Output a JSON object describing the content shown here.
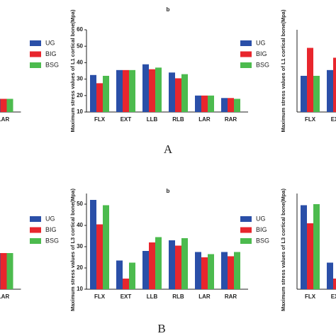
{
  "chart_data": [
    {
      "type": "bar",
      "categories": [
        "LAR"
      ],
      "ylim": [
        10,
        60
      ],
      "series": [
        {
          "color": "#2a4fa8",
          "values": [
            18
          ]
        },
        {
          "color": "#e8262d",
          "values": [
            18
          ]
        },
        {
          "color": "#4cbb4e",
          "values": [
            18
          ]
        }
      ]
    },
    {
      "type": "bar",
      "title": "b",
      "y_label": "Maximum stress values of L1 cortical bone(Mpa)",
      "categories": [
        "FLX",
        "EXT",
        "LLB",
        "RLB",
        "LAR",
        "RAR"
      ],
      "ylim": [
        10,
        60
      ],
      "yticks": [
        10,
        20,
        30,
        40,
        50,
        60
      ],
      "series": [
        {
          "name": "UG",
          "color": "#2a4fa8",
          "values": [
            32.5,
            35.5,
            39,
            34,
            20,
            18.5
          ]
        },
        {
          "name": "BIG",
          "color": "#e8262d",
          "values": [
            27.5,
            35.5,
            36,
            30.5,
            20,
            18.5
          ]
        },
        {
          "name": "BSG",
          "color": "#4cbb4e",
          "values": [
            32,
            35.5,
            37,
            33,
            20,
            18
          ]
        }
      ]
    },
    {
      "type": "bar",
      "y_label": "Maximum stress values of L1 cortical bone(Mpa)",
      "categories": [
        "FLX",
        "EXT"
      ],
      "ylim": [
        10,
        60
      ],
      "series": [
        {
          "name": "UG",
          "color": "#2a4fa8",
          "values": [
            32,
            35.5
          ]
        },
        {
          "name": "BIG",
          "color": "#e8262d",
          "values": [
            49,
            43
          ]
        },
        {
          "name": "BSG",
          "color": "#4cbb4e",
          "values": [
            32,
            null
          ]
        }
      ]
    },
    {
      "type": "bar",
      "categories": [
        "LAR"
      ],
      "ylim": [
        10,
        55
      ],
      "series": [
        {
          "color": "#2a4fa8",
          "values": [
            27
          ]
        },
        {
          "color": "#e8262d",
          "values": [
            27
          ]
        },
        {
          "color": "#4cbb4e",
          "values": [
            27
          ]
        }
      ]
    },
    {
      "type": "bar",
      "title": "b",
      "y_label": "Maximum stress values of L3 cortical bone(Mpa)",
      "categories": [
        "FLX",
        "EXT",
        "LLB",
        "RLB",
        "LAR",
        "RAR"
      ],
      "ylim": [
        10,
        55
      ],
      "yticks": [
        10,
        20,
        30,
        40,
        50
      ],
      "series": [
        {
          "name": "UG",
          "color": "#2a4fa8",
          "values": [
            52,
            23.5,
            28,
            33,
            27.5,
            27.5
          ]
        },
        {
          "name": "BIG",
          "color": "#e8262d",
          "values": [
            40.5,
            15,
            32,
            30.5,
            25,
            25.5
          ]
        },
        {
          "name": "BSG",
          "color": "#4cbb4e",
          "values": [
            49.5,
            22.5,
            34.5,
            34,
            26.5,
            27.5
          ]
        }
      ]
    },
    {
      "type": "bar",
      "y_label": "Maximum stress values of L3 cortical bone(Mpa)",
      "categories": [
        "FLX",
        "EXT"
      ],
      "ylim": [
        10,
        55
      ],
      "series": [
        {
          "name": "UG",
          "color": "#2a4fa8",
          "values": [
            49.5,
            22.5
          ]
        },
        {
          "name": "BIG",
          "color": "#e8262d",
          "values": [
            41,
            15
          ]
        },
        {
          "name": "BSG",
          "color": "#4cbb4e",
          "values": [
            50,
            null
          ]
        }
      ]
    }
  ],
  "panel_labels": [
    "A",
    "B"
  ]
}
